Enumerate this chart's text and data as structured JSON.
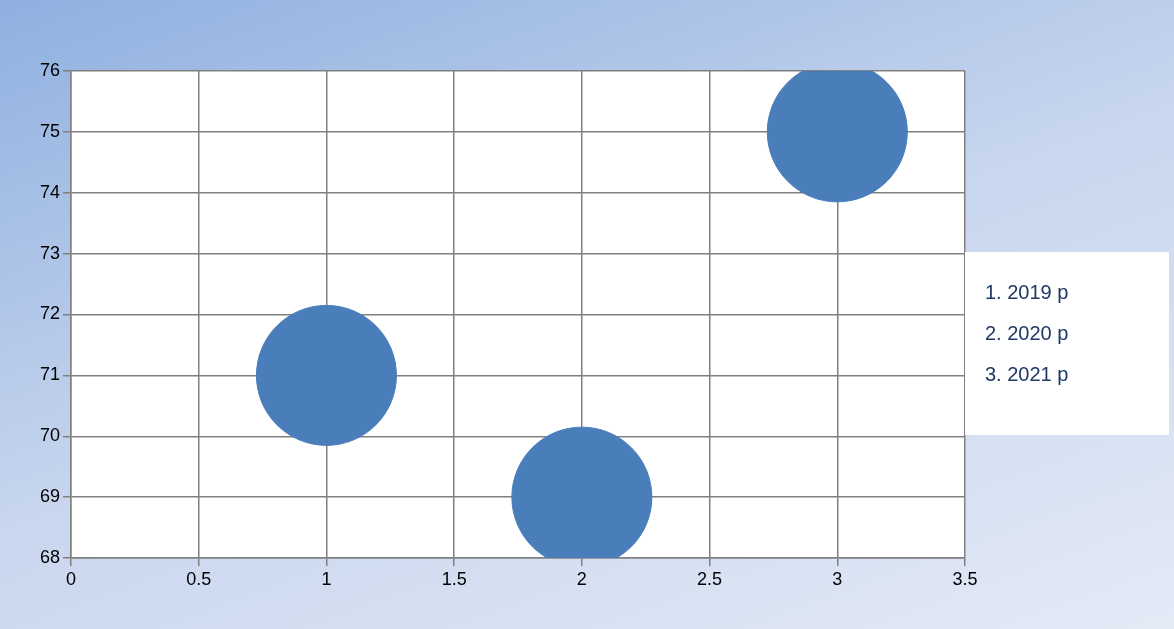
{
  "chart_data": {
    "type": "bubble",
    "x": [
      1,
      2,
      3
    ],
    "values": [
      71,
      69,
      75
    ],
    "sizes": [
      1,
      1,
      1
    ],
    "color": "#4a7ebb",
    "xlim": [
      0,
      3.5
    ],
    "xticks": [
      0,
      0.5,
      1,
      1.5,
      2,
      2.5,
      3,
      3.5
    ],
    "ylim": [
      68,
      76
    ],
    "yticks": [
      68,
      69,
      70,
      71,
      72,
      73,
      74,
      75,
      76
    ],
    "grid": true,
    "legend": false,
    "annotations": [
      "1.  2019 p",
      "2.  2020 p",
      "3.  2021 p"
    ]
  }
}
